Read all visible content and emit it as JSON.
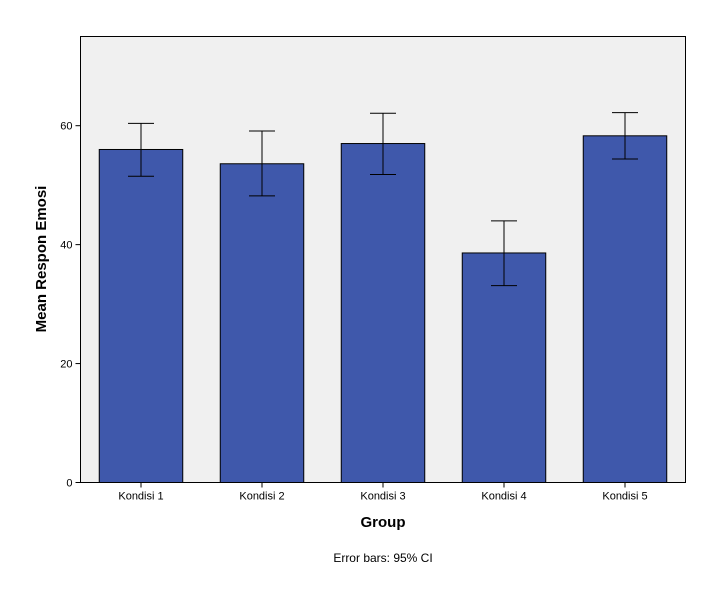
{
  "chart_data": {
    "type": "bar",
    "categories": [
      "Kondisi 1",
      "Kondisi 2",
      "Kondisi 3",
      "Kondisi 4",
      "Kondisi 5"
    ],
    "values": [
      56.0,
      53.6,
      57.0,
      38.6,
      58.3
    ],
    "error_lower": [
      51.5,
      48.2,
      51.8,
      33.1,
      54.4
    ],
    "error_upper": [
      60.4,
      59.1,
      62.1,
      44.0,
      62.2
    ],
    "xlabel": "Group",
    "ylabel": "Mean Respon Emosi",
    "note": "Error bars: 95% CI",
    "ylim": [
      0,
      75
    ],
    "yticks": [
      0,
      20,
      40,
      60
    ],
    "grid": false,
    "colors": {
      "bar_fill": "#3F58AB",
      "bar_stroke": "#000000",
      "plot_background": "#F0F0F0",
      "error_bar": "#000000"
    }
  }
}
